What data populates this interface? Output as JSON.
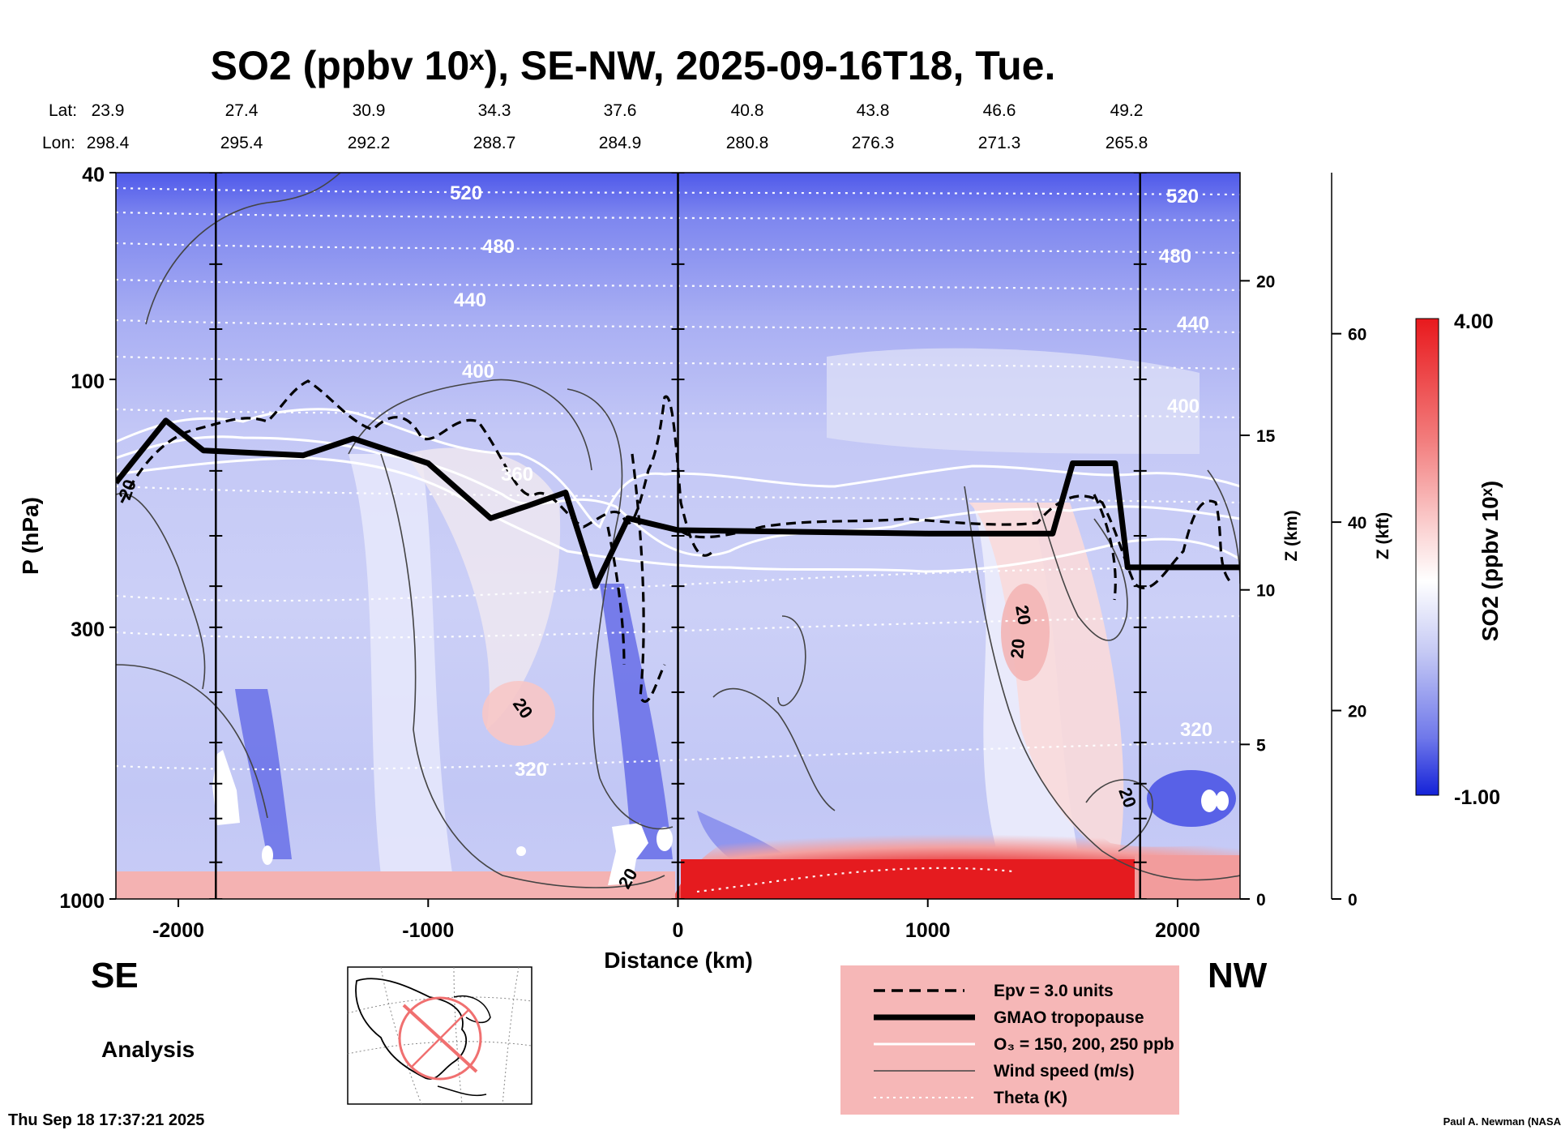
{
  "title": "SO2 (ppbv 10ˣ), SE-NW, 2025-09-16T18, Tue.",
  "header": {
    "lat_label": "Lat:",
    "lon_label": "Lon:",
    "lats": [
      "23.9",
      "27.4",
      "30.9",
      "34.3",
      "37.6",
      "40.8",
      "43.8",
      "46.6",
      "49.2"
    ],
    "lons": [
      "298.4",
      "295.4",
      "292.2",
      "288.7",
      "284.9",
      "280.8",
      "276.3",
      "271.3",
      "265.8"
    ]
  },
  "chart_data": {
    "type": "heatmap",
    "title": "SO2 (ppbv 10ˣ), SE-NW, 2025-09-16T18, Tue.",
    "xlabel": "Distance (km)",
    "ylabel": "P (hPa)",
    "right_axis_label": "Z (km)",
    "far_right_axis_label": "Z (kft)",
    "colorbar_label": "SO2 (ppbv 10ˣ)",
    "x_ticks": [
      "-2000",
      "-1000",
      "0",
      "1000",
      "2000"
    ],
    "x_tick_values": [
      -2000,
      -1000,
      0,
      1000,
      2000
    ],
    "xlim": [
      -2250,
      2250
    ],
    "y_ticks": [
      "40",
      "100",
      "300",
      "1000"
    ],
    "y_tick_values": [
      40,
      100,
      300,
      1000
    ],
    "ylim": [
      1000,
      40
    ],
    "y_scale": "log",
    "z_km_ticks": [
      "0",
      "5",
      "10",
      "15",
      "20"
    ],
    "z_km_values": [
      0,
      5,
      10,
      15,
      20
    ],
    "z_kft_ticks": [
      "0",
      "20",
      "40",
      "60"
    ],
    "z_kft_values": [
      0,
      20,
      40,
      60
    ],
    "colorbar": {
      "max_label": "4.00",
      "min_label": "-1.00",
      "min": -1.0,
      "max": 4.0
    },
    "colors": {
      "high": "#e8262a",
      "mid": "#ffffff",
      "low": "#2b33e6",
      "background_field": "#c9cdf5"
    },
    "theta_labels": [
      "520",
      "480",
      "440",
      "400",
      "360",
      "320",
      "520",
      "480",
      "440",
      "400",
      "320"
    ],
    "wind_labels": [
      "20",
      "20",
      "20",
      "20",
      "20",
      "20"
    ],
    "tropopause_pressure_hPa": [
      {
        "x": -2250,
        "p": 158
      },
      {
        "x": -2050,
        "p": 120
      },
      {
        "x": -1900,
        "p": 137
      },
      {
        "x": -1500,
        "p": 140
      },
      {
        "x": -1300,
        "p": 130
      },
      {
        "x": -1000,
        "p": 145
      },
      {
        "x": -750,
        "p": 185
      },
      {
        "x": -600,
        "p": 175
      },
      {
        "x": -450,
        "p": 165
      },
      {
        "x": -330,
        "p": 250
      },
      {
        "x": -200,
        "p": 185
      },
      {
        "x": 0,
        "p": 195
      },
      {
        "x": 1000,
        "p": 198
      },
      {
        "x": 1500,
        "p": 198
      },
      {
        "x": 1580,
        "p": 145
      },
      {
        "x": 1750,
        "p": 145
      },
      {
        "x": 1800,
        "p": 230
      },
      {
        "x": 2250,
        "p": 230
      }
    ],
    "vertical_markers_km": [
      -1850,
      0,
      1850
    ],
    "legend": [
      {
        "style": "dashed",
        "label": "Epv = 3.0 units"
      },
      {
        "style": "thick",
        "label": "GMAO tropopause"
      },
      {
        "style": "white",
        "label": "O₃ = 150, 200, 250 ppb"
      },
      {
        "style": "thin",
        "label": "Wind speed (m/s)"
      },
      {
        "style": "dotted",
        "label": "Theta (K)"
      }
    ]
  },
  "left_label": "SE",
  "right_label": "NW",
  "analysis_label": "Analysis",
  "timestamp": "Thu Sep 18 17:37:21 2025",
  "credit": "Paul A. Newman (NASA"
}
